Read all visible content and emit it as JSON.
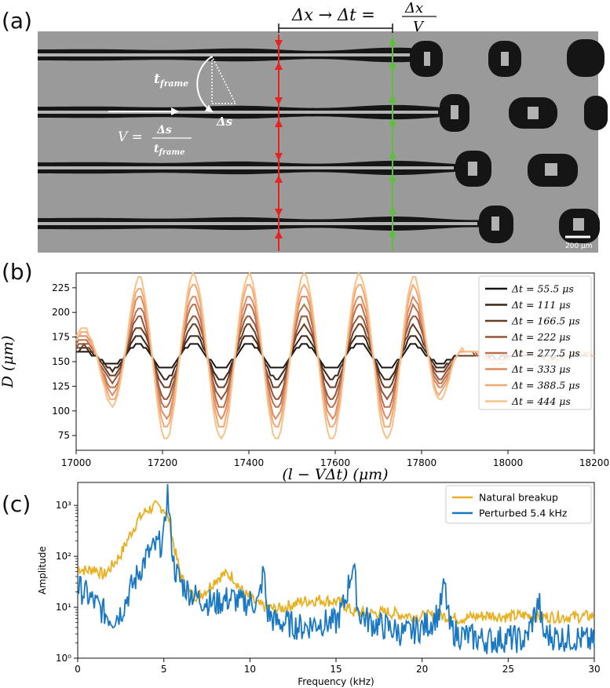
{
  "panels": {
    "a": "(a)",
    "b": "(b)",
    "c": "(c)"
  },
  "panel_a": {
    "top_formula_left": "Δx → Δt =",
    "top_formula_num": "Δx",
    "top_formula_den": "V",
    "t_frame": "t",
    "t_frame_sub": "frame",
    "delta_s": "Δs",
    "v_formula_lhs": "V =",
    "v_formula_num": "Δs",
    "v_formula_den": "t",
    "v_formula_den_sub": "frame",
    "scale_bar": "200 μm",
    "colors": {
      "background": "#9a9a9a",
      "jet": "#161616",
      "red_arrow": "#e8221e",
      "green_arrow": "#5cc03a"
    }
  },
  "chart_data": [
    {
      "type": "line",
      "panel": "b",
      "ylabel": "D (μm)",
      "xlabel": "(l − VΔt) (μm)",
      "xlim": [
        17000,
        18200
      ],
      "ylim": [
        60,
        240
      ],
      "xticks": [
        "17000",
        "17200",
        "17400",
        "17600",
        "17800",
        "18000",
        "18200"
      ],
      "yticks": [
        "75",
        "100",
        "125",
        "150",
        "175",
        "200",
        "225"
      ],
      "wave": {
        "base": 155,
        "period": 128,
        "phase_max_at": 17400,
        "decay_start": 17780
      },
      "series": [
        {
          "name": "Δt = 55.5 μs",
          "amplitude": 13,
          "color": "#1a1410"
        },
        {
          "name": "Δt = 111 μs",
          "amplitude": 22,
          "color": "#3a2618"
        },
        {
          "name": "Δt = 166.5 μs",
          "amplitude": 32,
          "color": "#6a3c24"
        },
        {
          "name": "Δt = 222 μs",
          "amplitude": 42,
          "color": "#93553a"
        },
        {
          "name": "Δt = 277.5 μs",
          "amplitude": 52,
          "color": "#bb6f4e"
        },
        {
          "name": "Δt = 333 μs",
          "amplitude": 62,
          "color": "#dd8a62"
        },
        {
          "name": "Δt = 388.5 μs",
          "amplitude": 73,
          "color": "#f2a775"
        },
        {
          "name": "Δt = 444 μs",
          "amplitude": 84,
          "color": "#f9c188"
        }
      ],
      "legend": "top-right"
    },
    {
      "type": "line",
      "panel": "c",
      "ylabel": "Amplitude",
      "xlabel": "Frequency (kHz)",
      "xlim": [
        0,
        30
      ],
      "ylim_log10": [
        0,
        3.45
      ],
      "xticks": [
        "0",
        "5",
        "10",
        "15",
        "20",
        "25",
        "30"
      ],
      "yticks": [
        "10⁰",
        "10¹",
        "10²",
        "10³"
      ],
      "series": [
        {
          "name": "Natural breakup",
          "color": "#e8b020",
          "points": [
            [
              0,
              60
            ],
            [
              0.5,
              52
            ],
            [
              1,
              58
            ],
            [
              1.5,
              42
            ],
            [
              2,
              65
            ],
            [
              2.5,
              110
            ],
            [
              3,
              250
            ],
            [
              3.5,
              520
            ],
            [
              4,
              800
            ],
            [
              4.5,
              950
            ],
            [
              5,
              880
            ],
            [
              5.3,
              520
            ],
            [
              5.6,
              150
            ],
            [
              6,
              40
            ],
            [
              6.5,
              18
            ],
            [
              7,
              17
            ],
            [
              7.5,
              22
            ],
            [
              8,
              35
            ],
            [
              8.5,
              45
            ],
            [
              9,
              40
            ],
            [
              9.5,
              22
            ],
            [
              10,
              15
            ],
            [
              10.5,
              11
            ],
            [
              11,
              10
            ],
            [
              11.5,
              9
            ],
            [
              12,
              10
            ],
            [
              13,
              13
            ],
            [
              14,
              14
            ],
            [
              15,
              13
            ],
            [
              15.5,
              11
            ],
            [
              16,
              8
            ],
            [
              17,
              7.5
            ],
            [
              18,
              8
            ],
            [
              19,
              7
            ],
            [
              20,
              6.5
            ],
            [
              21,
              7
            ],
            [
              22,
              6
            ],
            [
              23,
              6.5
            ],
            [
              24,
              7
            ],
            [
              25,
              6.5
            ],
            [
              26,
              7
            ],
            [
              27,
              6.5
            ],
            [
              28,
              6.5
            ],
            [
              29,
              6.5
            ],
            [
              30,
              6.8
            ]
          ]
        },
        {
          "name": "Perturbed 5.4 kHz",
          "color": "#1a78c2",
          "points": [
            [
              0,
              25
            ],
            [
              0.5,
              18
            ],
            [
              1,
              12
            ],
            [
              1.5,
              8
            ],
            [
              2,
              6
            ],
            [
              2.5,
              8
            ],
            [
              3,
              20
            ],
            [
              3.5,
              45
            ],
            [
              4,
              100
            ],
            [
              4.5,
              150
            ],
            [
              5,
              200
            ],
            [
              5.2,
              2200
            ],
            [
              5.4,
              300
            ],
            [
              5.6,
              60
            ],
            [
              6,
              30
            ],
            [
              6.5,
              20
            ],
            [
              7,
              15
            ],
            [
              7.5,
              13
            ],
            [
              8,
              12
            ],
            [
              8.5,
              14
            ],
            [
              9,
              15
            ],
            [
              9.5,
              12
            ],
            [
              10,
              13
            ],
            [
              10.5,
              12
            ],
            [
              10.8,
              55
            ],
            [
              11,
              8
            ],
            [
              11.5,
              5
            ],
            [
              12,
              5
            ],
            [
              13,
              4
            ],
            [
              14,
              5
            ],
            [
              15,
              5
            ],
            [
              15.5,
              12
            ],
            [
              16,
              75
            ],
            [
              16.3,
              8
            ],
            [
              17,
              5
            ],
            [
              18,
              4
            ],
            [
              19,
              3
            ],
            [
              20,
              4
            ],
            [
              20.5,
              5
            ],
            [
              21,
              8
            ],
            [
              21.3,
              28
            ],
            [
              21.6,
              4
            ],
            [
              22,
              3
            ],
            [
              23,
              2.5
            ],
            [
              24,
              2.2
            ],
            [
              25,
              2.5
            ],
            [
              26,
              2.2
            ],
            [
              26.8,
              13
            ],
            [
              27,
              3
            ],
            [
              28,
              2.5
            ],
            [
              29,
              2.5
            ],
            [
              30,
              2
            ]
          ]
        }
      ],
      "legend": "top-right"
    }
  ]
}
